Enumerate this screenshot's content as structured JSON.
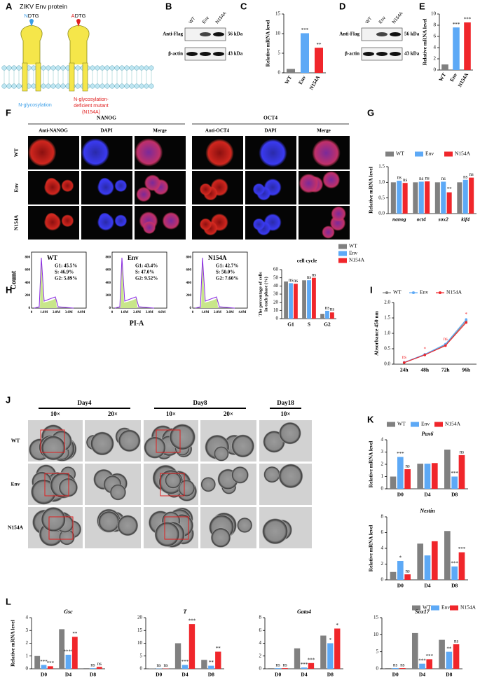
{
  "panel_A": {
    "label": "A",
    "title": "ZIKV Env protein",
    "site_wt": {
      "residue": "N",
      "motif": "DTG"
    },
    "site_mut": {
      "residue": "A",
      "motif": "DTG"
    },
    "caption_wt": "N-glycosylation",
    "caption_mut": [
      "N-glycosylation-",
      "deficient mutant",
      "(N154A)"
    ]
  },
  "panel_B": {
    "label": "B",
    "lanes": [
      "WT",
      "Env",
      "N154A"
    ],
    "rows": [
      "Anti-Flag",
      "β-actin"
    ],
    "sizes": [
      "56 kDa",
      "43 kDa"
    ]
  },
  "panel_C": {
    "label": "C",
    "type": "bar",
    "categories": [
      "WT",
      "Env",
      "N154A"
    ],
    "values": [
      1,
      10.1,
      6.4
    ],
    "colors": [
      "#808080",
      "#5da9f6",
      "#f0262b"
    ],
    "sig": [
      null,
      "***",
      "**"
    ],
    "ylim": [
      0,
      15
    ],
    "yticks": [
      0,
      5,
      10,
      15
    ],
    "ylabel": "Relative mRNA level"
  },
  "panel_D": {
    "label": "D",
    "lanes": [
      "WT",
      "Env",
      "N154A"
    ],
    "rows": [
      "Anti-Flag",
      "β-actin"
    ],
    "sizes": [
      "56 kDa",
      "43 kDa"
    ]
  },
  "panel_E": {
    "label": "E",
    "type": "bar",
    "categories": [
      "WT",
      "Env",
      "N154A"
    ],
    "values": [
      1,
      7.6,
      8.5
    ],
    "colors": [
      "#808080",
      "#5da9f6",
      "#f0262b"
    ],
    "sig": [
      null,
      "***",
      "***"
    ],
    "ylim": [
      0,
      10
    ],
    "yticks": [
      0,
      2,
      4,
      6,
      8,
      10
    ],
    "ylabel": "Relative mRNA level"
  },
  "panel_F": {
    "label": "F",
    "groups": [
      {
        "name": "NANOG",
        "columns": [
          "Anti-NANOG",
          "DAPI",
          "Merge"
        ]
      },
      {
        "name": "OCT4",
        "columns": [
          "Anti-OCT4",
          "DAPI",
          "Merge"
        ]
      }
    ],
    "rows": [
      "WT",
      "Env",
      "N154A"
    ]
  },
  "panel_G": {
    "label": "G",
    "type": "bar",
    "categories": [
      "nanog",
      "oct4",
      "sox2",
      "klf4"
    ],
    "series": [
      {
        "name": "WT",
        "color": "#808080",
        "values": [
          1,
          1,
          1,
          1
        ]
      },
      {
        "name": "Env",
        "color": "#5da9f6",
        "values": [
          1.05,
          1.02,
          1.02,
          1.08
        ],
        "sig": [
          "ns",
          "ns",
          "ns",
          "ns"
        ]
      },
      {
        "name": "N154A",
        "color": "#f0262b",
        "values": [
          0.98,
          1.03,
          0.68,
          1.15
        ],
        "sig": [
          "ns",
          "ns",
          "**",
          "ns"
        ]
      }
    ],
    "ylim": [
      0,
      1.5
    ],
    "yticks": [
      {
        "value": 0,
        "label": "0.0"
      },
      0.5,
      {
        "value": 1,
        "label": "1.0"
      },
      1.5
    ],
    "ylabel": "Relative mRNA level"
  },
  "panel_H": {
    "label": "H",
    "ylabel": "Count",
    "xlabel": "PI-A",
    "hist_yticks": [
      "0",
      "200",
      "400",
      "600",
      "800"
    ],
    "hist_xticks": [
      "0",
      "1.0M",
      "2.0M",
      "3.0M",
      "4.0M"
    ],
    "histograms": [
      {
        "sample": "WT",
        "stats": [
          "G1: 45.5%",
          "S: 46.9%",
          "G2: 5.89%"
        ]
      },
      {
        "sample": "Env",
        "stats": [
          "G1: 43.4%",
          "S: 47.0%",
          "G2: 9.52%"
        ]
      },
      {
        "sample": "N154A",
        "stats": [
          "G1: 42.7%",
          "S: 50.0%",
          "G2: 7.60%"
        ]
      }
    ],
    "cycle": {
      "type": "bar",
      "title": "cell cycle",
      "categories": [
        "G1",
        "S",
        "G2"
      ],
      "series": [
        {
          "name": "WT",
          "color": "#808080",
          "values": [
            45.5,
            46.9,
            5.89
          ]
        },
        {
          "name": "Env",
          "color": "#5da9f6",
          "values": [
            43.4,
            47.0,
            9.52
          ],
          "sig": [
            "ns",
            "ns",
            "ns"
          ]
        },
        {
          "name": "N154A",
          "color": "#f0262b",
          "values": [
            42.7,
            50.0,
            7.6
          ],
          "sig": [
            "ns",
            "ns",
            "ns"
          ]
        }
      ],
      "ylim": [
        0,
        60
      ],
      "yticks": [
        0,
        10,
        20,
        30,
        40,
        50,
        60
      ],
      "ylabel": [
        "The percentage of cells",
        "in each phase (%)"
      ]
    }
  },
  "panel_I": {
    "label": "I",
    "type": "line",
    "categories": [
      "24h",
      "48h",
      "72h",
      "96h"
    ],
    "series": [
      {
        "name": "WT",
        "color": "#808080",
        "values": [
          0.05,
          0.3,
          0.62,
          1.4
        ]
      },
      {
        "name": "Env",
        "color": "#5da9f6",
        "values": [
          0.06,
          0.32,
          0.65,
          1.45
        ]
      },
      {
        "name": "N154A",
        "color": "#f0262b",
        "values": [
          0.05,
          0.3,
          0.6,
          1.35
        ]
      }
    ],
    "sig": [
      "ns",
      "*",
      "ns",
      "*"
    ],
    "ylim": [
      0,
      2
    ],
    "yticks": [
      {
        "value": 0,
        "label": "0.0"
      },
      0.5,
      {
        "value": 1,
        "label": "1.0"
      },
      1.5,
      {
        "value": 2,
        "label": "2.0"
      }
    ],
    "ylabel": "Absorbance 450 nm"
  },
  "panel_J": {
    "label": "J",
    "days": [
      {
        "name": "Day4",
        "mags": [
          "10×",
          "20×"
        ]
      },
      {
        "name": "Day8",
        "mags": [
          "10×",
          "20×"
        ]
      },
      {
        "name": "Day18",
        "mags": [
          "10×"
        ]
      }
    ],
    "rows": [
      "WT",
      "Env",
      "N154A"
    ]
  },
  "panel_K": {
    "label": "K",
    "legend": [
      {
        "name": "WT",
        "color": "#808080"
      },
      {
        "name": "Env",
        "color": "#5da9f6"
      },
      {
        "name": "N154A",
        "color": "#f0262b"
      }
    ],
    "charts": [
      {
        "type": "bar",
        "title": "Pax6",
        "categories": [
          "D0",
          "D4",
          "D8"
        ],
        "series": [
          {
            "values": [
              1,
              2.05,
              3.2
            ]
          },
          {
            "values": [
              2.6,
              2.05,
              1.0
            ],
            "sig": [
              "***",
              null,
              "***"
            ]
          },
          {
            "values": [
              1.6,
              2.1,
              2.75
            ],
            "sig": [
              "ns",
              null,
              "ns"
            ]
          }
        ],
        "ylim": [
          0,
          4
        ],
        "yticks": [
          0,
          1,
          2,
          3,
          4
        ],
        "ylabel": "Relative mRNA level"
      },
      {
        "type": "bar",
        "title": "Nestin",
        "categories": [
          "D0",
          "D4",
          "D8"
        ],
        "series": [
          {
            "values": [
              1,
              4.6,
              6.2
            ]
          },
          {
            "values": [
              2.4,
              3.1,
              1.7
            ],
            "sig": [
              "*",
              null,
              "***"
            ]
          },
          {
            "values": [
              0.7,
              4.9,
              3.5
            ],
            "sig": [
              "ns",
              null,
              "***"
            ]
          }
        ],
        "ylim": [
          0,
          8
        ],
        "yticks": [
          0,
          2,
          4,
          6,
          8
        ],
        "ylabel": "Relative mRNA level"
      }
    ]
  },
  "panel_L": {
    "label": "L",
    "legend": [
      {
        "name": "WT",
        "color": "#808080"
      },
      {
        "name": "Env",
        "color": "#5da9f6"
      },
      {
        "name": "N154A",
        "color": "#f0262b"
      }
    ],
    "charts": [
      {
        "type": "bar",
        "title": "Gsc",
        "categories": [
          "D0",
          "D4",
          "D8"
        ],
        "series": [
          {
            "values": [
              1,
              3.1,
              0.05
            ]
          },
          {
            "values": [
              0.3,
              1.1,
              0.05
            ],
            "sig": [
              "***",
              "****",
              "ns"
            ]
          },
          {
            "values": [
              0.2,
              2.5,
              0.15
            ],
            "sig": [
              "***",
              "**",
              "ns"
            ]
          }
        ],
        "ylim": [
          0,
          4
        ],
        "yticks": [
          0,
          1,
          2,
          3,
          4
        ],
        "ylabel": "Relative mRNA level"
      },
      {
        "type": "bar",
        "title": "T",
        "categories": [
          "D0",
          "D4",
          "D8"
        ],
        "series": [
          {
            "values": [
              0.1,
              10,
              3.5
            ]
          },
          {
            "values": [
              0.1,
              1.5,
              1.2
            ],
            "sig": [
              "ns",
              "***",
              "**"
            ]
          },
          {
            "values": [
              0.1,
              17.5,
              6.7
            ],
            "sig": [
              "ns",
              "***",
              "**"
            ]
          }
        ],
        "ylim": [
          0,
          20
        ],
        "yticks": [
          0,
          5,
          10,
          15,
          20
        ]
      },
      {
        "type": "bar",
        "title": "Gata4",
        "categories": [
          "D0",
          "D4",
          "D8"
        ],
        "series": [
          {
            "values": [
              0.1,
              3.2,
              5.2
            ]
          },
          {
            "values": [
              0.1,
              0.2,
              4.0
            ],
            "sig": [
              "ns",
              "***",
              "*"
            ]
          },
          {
            "values": [
              0.1,
              0.9,
              6.3
            ],
            "sig": [
              "ns",
              "***",
              "*"
            ]
          }
        ],
        "ylim": [
          0,
          8
        ],
        "yticks": [
          0,
          2,
          4,
          6,
          8
        ]
      },
      {
        "type": "bar",
        "title": "Sox17",
        "categories": [
          "D0",
          "D4",
          "D8"
        ],
        "series": [
          {
            "values": [
              0.2,
              10.5,
              8.5
            ]
          },
          {
            "values": [
              0.2,
              1.5,
              5
            ],
            "sig": [
              "ns",
              "***",
              "**"
            ]
          },
          {
            "values": [
              0.2,
              2.8,
              7.2
            ],
            "sig": [
              "ns",
              "***",
              "ns"
            ]
          }
        ],
        "ylim": [
          0,
          15
        ],
        "yticks": [
          0,
          5,
          10,
          15
        ]
      }
    ]
  }
}
